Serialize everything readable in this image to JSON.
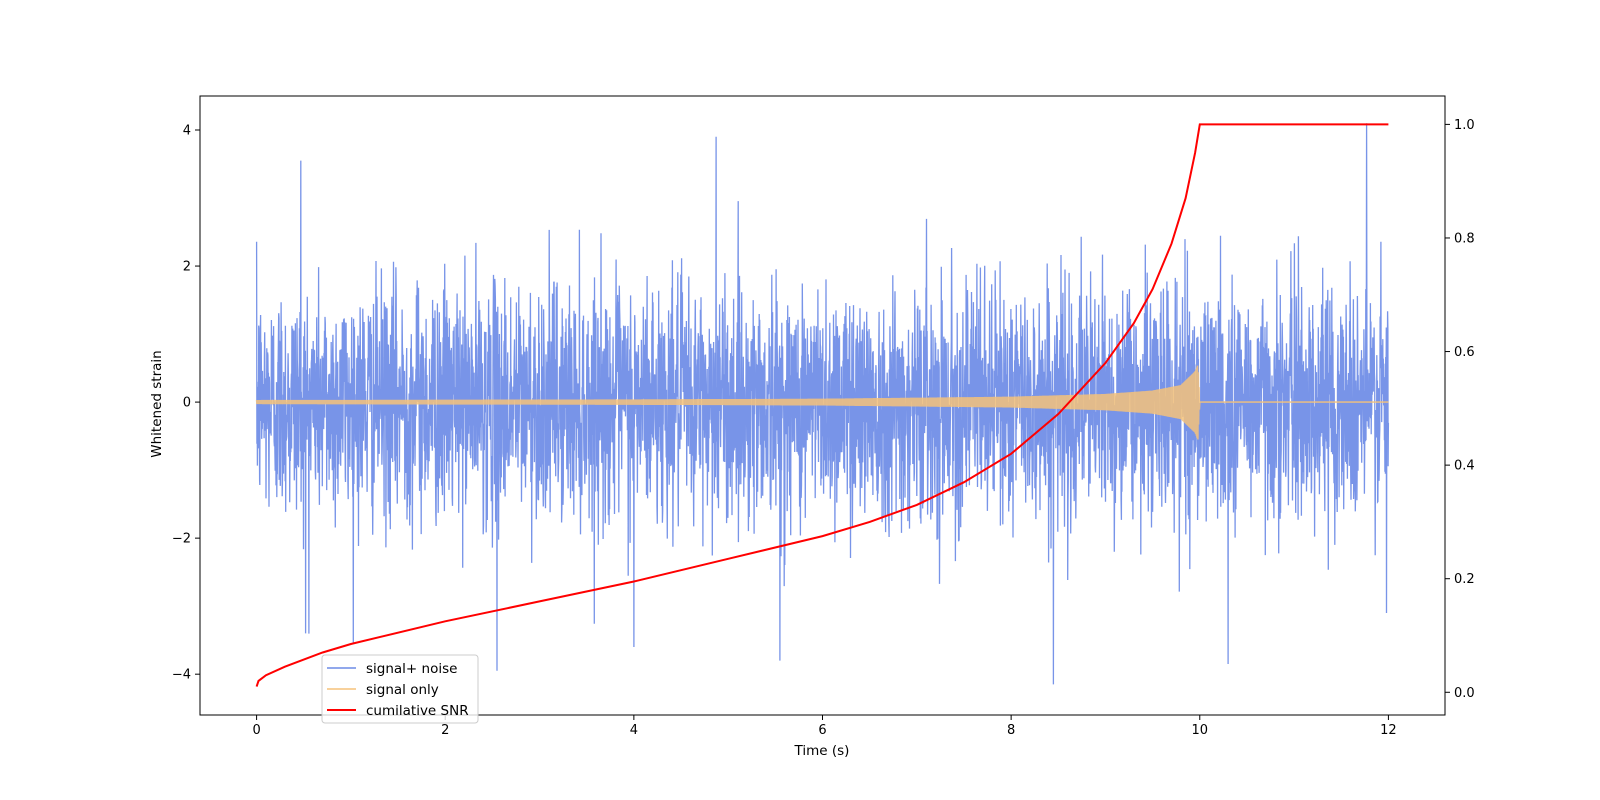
{
  "chart_data": {
    "type": "line",
    "title": "",
    "xlabel": "Time (s)",
    "ylabel": "Whitened strain",
    "y2label": "",
    "xlim": [
      -0.6,
      12.6
    ],
    "ylim": [
      -4.6,
      4.5
    ],
    "y2lim": [
      -0.04,
      1.05
    ],
    "xticks": [
      0,
      2,
      4,
      6,
      8,
      10,
      12
    ],
    "yticks": [
      -4,
      -2,
      0,
      2,
      4
    ],
    "y2ticks": [
      0.0,
      0.2,
      0.4,
      0.6,
      0.8,
      1.0
    ],
    "xtick_labels": [
      "0",
      "2",
      "4",
      "6",
      "8",
      "10",
      "12"
    ],
    "ytick_labels": [
      "−4",
      "−2",
      "0",
      "2",
      "4"
    ],
    "y2tick_labels": [
      "0.0",
      "0.2",
      "0.4",
      "0.6",
      "0.8",
      "1.0"
    ],
    "grid": false,
    "legend_position": "lower-left",
    "series": [
      {
        "name": "signal+ noise",
        "axis": "left",
        "color": "#6d8be6",
        "x_range": [
          0,
          12
        ],
        "mean": 0,
        "typical_envelope": [
          -2.5,
          2.5
        ],
        "observed_peaks": [
          {
            "x": 0.47,
            "y": 3.55
          },
          {
            "x": 0.52,
            "y": -3.4
          },
          {
            "x": 2.55,
            "y": -3.95
          },
          {
            "x": 4.87,
            "y": 3.9
          },
          {
            "x": 4.0,
            "y": -3.6
          },
          {
            "x": 5.55,
            "y": -3.8
          },
          {
            "x": 8.45,
            "y": -4.15
          },
          {
            "x": 11.77,
            "y": 4.1
          },
          {
            "x": 10.3,
            "y": -3.85
          },
          {
            "x": 11.98,
            "y": -3.1
          }
        ]
      },
      {
        "name": "signal only",
        "axis": "left",
        "color": "#f5c27a",
        "x_range": [
          0,
          12
        ],
        "envelope": {
          "x": [
            0,
            2,
            4,
            6,
            8,
            9,
            9.5,
            9.8,
            9.95,
            9.98,
            10.0,
            12
          ],
          "amplitude": [
            0.03,
            0.035,
            0.04,
            0.05,
            0.08,
            0.12,
            0.17,
            0.25,
            0.45,
            0.55,
            0.0,
            0.0
          ]
        }
      },
      {
        "name": "cumilative SNR",
        "axis": "right",
        "color": "#ff0000",
        "x": [
          0,
          0.02,
          0.1,
          0.3,
          0.7,
          1.0,
          2.0,
          3.0,
          4.0,
          5.0,
          6.0,
          6.5,
          7.0,
          7.5,
          8.0,
          8.5,
          9.0,
          9.3,
          9.5,
          9.7,
          9.85,
          9.95,
          10.0,
          12.0
        ],
        "values": [
          0.01,
          0.02,
          0.03,
          0.045,
          0.07,
          0.085,
          0.125,
          0.16,
          0.195,
          0.235,
          0.275,
          0.3,
          0.33,
          0.37,
          0.42,
          0.49,
          0.58,
          0.65,
          0.71,
          0.79,
          0.87,
          0.95,
          1.0,
          1.0
        ]
      }
    ]
  }
}
